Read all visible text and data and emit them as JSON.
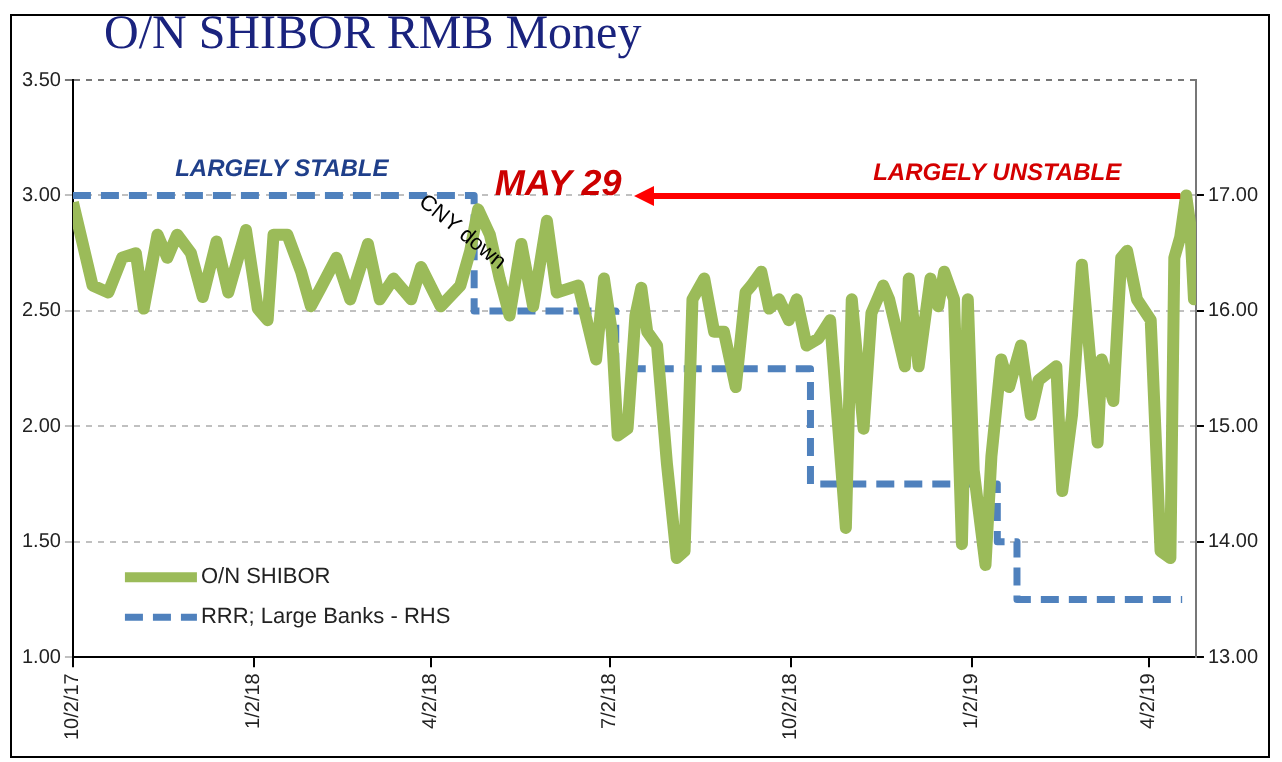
{
  "chart_data": {
    "type": "line",
    "title": "O/N SHIBOR RMB Money",
    "xlim": [
      "2017-10-02",
      "2019-04-26"
    ],
    "xticks": [
      {
        "value": "2017-10-02",
        "label": "10/2/17"
      },
      {
        "value": "2018-01-02",
        "label": "1/2/18"
      },
      {
        "value": "2018-04-02",
        "label": "4/2/18"
      },
      {
        "value": "2018-07-02",
        "label": "7/2/18"
      },
      {
        "value": "2018-10-02",
        "label": "10/2/18"
      },
      {
        "value": "2019-01-02",
        "label": "1/2/19"
      },
      {
        "value": "2019-04-02",
        "label": "4/2/19"
      }
    ],
    "ylim": [
      1,
      3.5
    ],
    "yticks": [
      {
        "value": 1,
        "label": "1.00"
      },
      {
        "value": 1.5,
        "label": "1.50"
      },
      {
        "value": 2,
        "label": "2.00"
      },
      {
        "value": 2.5,
        "label": "2.50"
      },
      {
        "value": 3,
        "label": "3.00"
      },
      {
        "value": 3.5,
        "label": "3.50"
      }
    ],
    "y2lim": [
      13,
      18
    ],
    "y2ticks": [
      {
        "value": 13,
        "label": "13.00"
      },
      {
        "value": 14,
        "label": "14.00"
      },
      {
        "value": 15,
        "label": "15.00"
      },
      {
        "value": 16,
        "label": "16.00"
      },
      {
        "value": 17,
        "label": "17.00"
      }
    ],
    "grid": "y",
    "legend": "bottom left",
    "series": [
      {
        "name": "O/N SHIBOR",
        "type": "line",
        "color": "#9bbb59",
        "x": [
          "2017-10-02",
          "2017-10-07",
          "2017-10-12",
          "2017-10-20",
          "2017-10-27",
          "2017-11-03",
          "2017-11-07",
          "2017-11-14",
          "2017-11-19",
          "2017-11-24",
          "2017-12-01",
          "2017-12-07",
          "2017-12-14",
          "2017-12-20",
          "2017-12-29",
          "2018-01-04",
          "2018-01-09",
          "2018-01-12",
          "2018-01-19",
          "2018-01-26",
          "2018-01-31",
          "2018-02-05",
          "2018-02-13",
          "2018-02-20",
          "2018-03-01",
          "2018-03-07",
          "2018-03-14",
          "2018-03-23",
          "2018-03-28",
          "2018-04-07",
          "2018-04-17",
          "2018-04-22",
          "2018-04-26",
          "2018-05-02",
          "2018-05-07",
          "2018-05-12",
          "2018-05-18",
          "2018-05-24",
          "2018-05-31",
          "2018-06-05",
          "2018-06-16",
          "2018-06-25",
          "2018-06-29",
          "2018-07-03",
          "2018-07-06",
          "2018-07-11",
          "2018-07-15",
          "2018-07-18",
          "2018-07-21",
          "2018-07-26",
          "2018-07-31",
          "2018-08-05",
          "2018-08-09",
          "2018-08-13",
          "2018-08-19",
          "2018-08-24",
          "2018-08-29",
          "2018-09-04",
          "2018-09-09",
          "2018-09-12",
          "2018-09-17",
          "2018-09-21",
          "2018-09-26",
          "2018-10-01",
          "2018-10-05",
          "2018-10-10",
          "2018-10-16",
          "2018-10-22",
          "2018-10-30",
          "2018-11-02",
          "2018-11-08",
          "2018-11-12",
          "2018-11-18",
          "2018-11-21",
          "2018-11-29",
          "2018-12-01",
          "2018-12-06",
          "2018-12-12",
          "2018-12-16",
          "2018-12-19",
          "2018-12-24",
          "2018-12-28",
          "2018-12-31",
          "2019-01-03",
          "2019-01-09",
          "2019-01-12",
          "2019-01-17",
          "2019-01-21",
          "2019-01-27",
          "2019-02-01",
          "2019-02-05",
          "2019-02-14",
          "2019-02-17",
          "2019-02-22",
          "2019-02-27",
          "2019-03-07",
          "2019-03-09",
          "2019-03-15",
          "2019-03-19",
          "2019-03-22",
          "2019-03-27",
          "2019-04-03",
          "2019-04-08",
          "2019-04-13",
          "2019-04-15",
          "2019-04-18",
          "2019-04-21",
          "2019-04-23",
          "2019-04-25",
          "2019-04-26"
        ],
        "values": [
          2.97,
          2.79,
          2.61,
          2.58,
          2.73,
          2.75,
          2.51,
          2.83,
          2.73,
          2.83,
          2.75,
          2.56,
          2.8,
          2.58,
          2.85,
          2.51,
          2.46,
          2.83,
          2.83,
          2.67,
          2.52,
          2.6,
          2.73,
          2.55,
          2.79,
          2.55,
          2.64,
          2.55,
          2.69,
          2.52,
          2.61,
          2.76,
          2.94,
          2.83,
          2.64,
          2.48,
          2.79,
          2.52,
          2.89,
          2.58,
          2.61,
          2.29,
          2.64,
          2.41,
          1.96,
          1.99,
          2.48,
          2.6,
          2.41,
          2.35,
          1.84,
          1.43,
          1.46,
          2.55,
          2.64,
          2.41,
          2.41,
          2.17,
          2.58,
          2.61,
          2.67,
          2.51,
          2.55,
          2.46,
          2.55,
          2.35,
          2.38,
          2.46,
          1.56,
          2.55,
          1.99,
          2.49,
          2.61,
          2.55,
          2.26,
          2.64,
          2.26,
          2.64,
          2.52,
          2.67,
          2.55,
          1.49,
          2.55,
          1.81,
          1.4,
          1.87,
          2.29,
          2.17,
          2.35,
          2.05,
          2.2,
          2.26,
          1.72,
          2.05,
          2.7,
          1.93,
          2.29,
          2.11,
          2.73,
          2.76,
          2.55,
          2.46,
          1.46,
          1.43,
          2.73,
          2.82,
          3.0,
          2.88,
          2.55,
          2.82
        ]
      },
      {
        "name": "RRR; Large Banks - RHS",
        "type": "step",
        "axis": "y2",
        "color": "#4f81bd",
        "line_style": "dashed",
        "x": [
          "2017-10-02",
          "2018-04-24",
          "2018-07-05",
          "2018-10-12",
          "2019-01-15",
          "2019-01-25",
          "2019-04-19"
        ],
        "values": [
          17,
          16,
          15.5,
          14.5,
          14,
          13.5,
          13.5
        ]
      }
    ],
    "annotations": [
      "LARGELY STABLE",
      "MAY 29",
      "LARGELY UNSTABLE",
      {
        "text": "CNY down",
        "x": "2018-04-16",
        "y": 2.82
      }
    ]
  }
}
